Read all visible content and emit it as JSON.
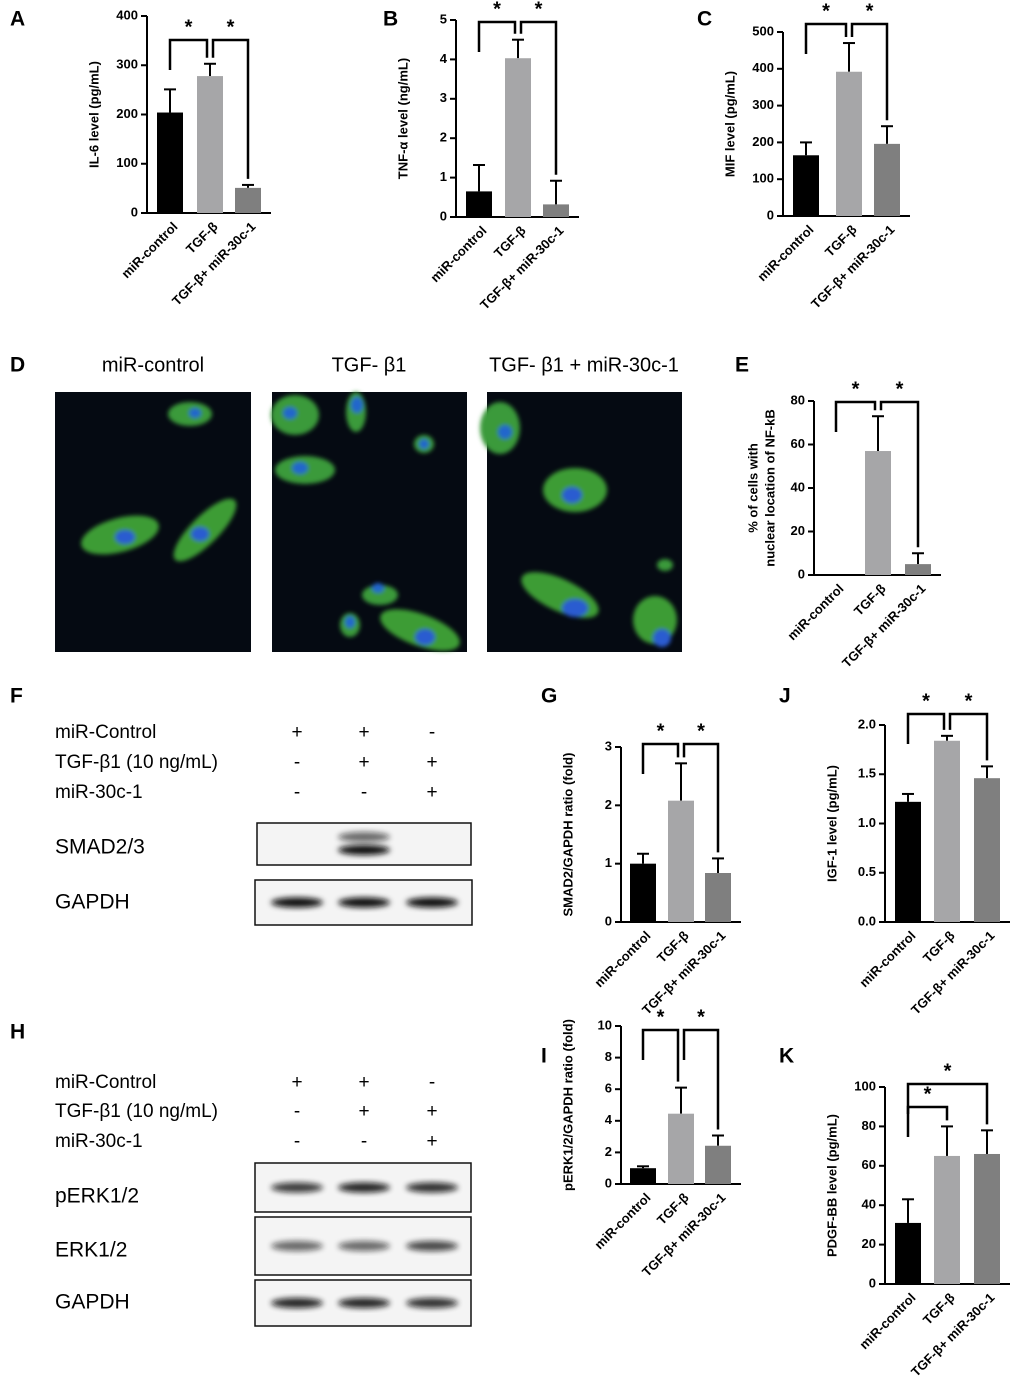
{
  "chart_data": [
    {
      "type": "bar",
      "panel": "A",
      "ylabel": "IL-6 level (pg/mL)",
      "categories": [
        "miR-control",
        "TGF-β",
        "TGF-β+ miR-30c-1"
      ],
      "values": [
        204,
        278,
        51
      ],
      "errors": [
        47,
        25,
        6
      ],
      "colors": [
        "#000000",
        "#a6a6a8",
        "#7f7f7f"
      ],
      "ylim": [
        0,
        400
      ],
      "yticks": [
        0,
        100,
        200,
        300,
        400
      ],
      "brackets": [
        {
          "between": [
            0,
            1
          ],
          "label": "*"
        },
        {
          "between": [
            1,
            2
          ],
          "label": "*"
        }
      ]
    },
    {
      "type": "bar",
      "panel": "B",
      "ylabel": "TNF-α level (ng/mL)",
      "categories": [
        "miR-control",
        "TGF-β",
        "TGF-β+ miR-30c-1"
      ],
      "values": [
        0.65,
        4.03,
        0.32
      ],
      "errors": [
        0.67,
        0.47,
        0.6
      ],
      "colors": [
        "#000000",
        "#a6a6a8",
        "#7f7f7f"
      ],
      "ylim": [
        0,
        5
      ],
      "yticks": [
        0,
        1,
        2,
        3,
        4,
        5
      ],
      "brackets": [
        {
          "between": [
            0,
            1
          ],
          "label": "*"
        },
        {
          "between": [
            1,
            2
          ],
          "label": "*"
        }
      ]
    },
    {
      "type": "bar",
      "panel": "C",
      "ylabel": "MIF level (pg/mL)",
      "categories": [
        "miR-control",
        "TGF-β",
        "TGF-β+ miR-30c-1"
      ],
      "values": [
        165,
        392,
        196
      ],
      "errors": [
        35,
        78,
        48
      ],
      "colors": [
        "#000000",
        "#a6a6a8",
        "#7f7f7f"
      ],
      "ylim": [
        0,
        500
      ],
      "yticks": [
        0,
        100,
        200,
        300,
        400,
        500
      ],
      "brackets": [
        {
          "between": [
            0,
            1
          ],
          "label": "*"
        },
        {
          "between": [
            1,
            2
          ],
          "label": "*"
        }
      ]
    },
    {
      "type": "bar",
      "panel": "E",
      "ylabel": [
        "% of cells with",
        "nuclear location of NF-kB"
      ],
      "categories": [
        "miR-control",
        "TGF-β",
        "TGF-β+ miR-30c-1"
      ],
      "values": [
        0,
        57,
        5
      ],
      "errors": [
        0,
        16,
        5
      ],
      "colors": [
        "#000000",
        "#a6a6a8",
        "#7f7f7f"
      ],
      "ylim": [
        0,
        80
      ],
      "yticks": [
        0,
        20,
        40,
        60,
        80
      ],
      "brackets": [
        {
          "between": [
            0,
            1
          ],
          "label": "*"
        },
        {
          "between": [
            1,
            2
          ],
          "label": "*"
        }
      ]
    },
    {
      "type": "bar",
      "panel": "G",
      "ylabel": "SMAD2/GAPDH ratio (fold)",
      "categories": [
        "miR-control",
        "TGF-β",
        "TGF-β+ miR-30c-1"
      ],
      "values": [
        1.0,
        2.08,
        0.84
      ],
      "errors": [
        0.17,
        0.64,
        0.25
      ],
      "colors": [
        "#000000",
        "#a6a6a8",
        "#7f7f7f"
      ],
      "ylim": [
        0,
        3
      ],
      "yticks": [
        0,
        1,
        2,
        3
      ],
      "brackets": [
        {
          "between": [
            0,
            1
          ],
          "label": "*"
        },
        {
          "between": [
            1,
            2
          ],
          "label": "*"
        }
      ]
    },
    {
      "type": "bar",
      "panel": "J",
      "ylabel": "IGF-1 level (pg/mL)",
      "categories": [
        "miR-control",
        "TGF-β",
        "TGF-β+ miR-30c-1"
      ],
      "values": [
        1.22,
        1.84,
        1.46
      ],
      "errors": [
        0.08,
        0.05,
        0.12
      ],
      "colors": [
        "#000000",
        "#a6a6a8",
        "#7f7f7f"
      ],
      "ylim": [
        0,
        2.0
      ],
      "yticks": [
        {
          "value": 0,
          "label": "0.0"
        },
        0.5,
        {
          "value": 1,
          "label": "1.0"
        },
        1.5,
        {
          "value": 2,
          "label": "2.0"
        }
      ],
      "brackets": [
        {
          "between": [
            0,
            1
          ],
          "label": "*"
        },
        {
          "between": [
            1,
            2
          ],
          "label": "*"
        }
      ]
    },
    {
      "type": "bar",
      "panel": "I",
      "ylabel": "pERK1/2/GAPDH ratio (fold)",
      "categories": [
        "miR-control",
        "TGF-β",
        "TGF-β+ miR-30c-1"
      ],
      "values": [
        1.0,
        4.45,
        2.42
      ],
      "errors": [
        0.12,
        1.65,
        0.65
      ],
      "colors": [
        "#000000",
        "#a6a6a8",
        "#7f7f7f"
      ],
      "ylim": [
        0,
        10
      ],
      "yticks": [
        0,
        2,
        4,
        6,
        8,
        10
      ],
      "brackets": [
        {
          "between": [
            0,
            1
          ],
          "label": "*"
        },
        {
          "between": [
            1,
            2
          ],
          "label": "*"
        }
      ]
    },
    {
      "type": "bar",
      "panel": "K",
      "ylabel": "PDGF-BB level (pg/mL)",
      "categories": [
        "miR-control",
        "TGF-β",
        "TGF-β+ miR-30c-1"
      ],
      "values": [
        31,
        65,
        66
      ],
      "errors": [
        12,
        15,
        12
      ],
      "colors": [
        "#000000",
        "#a6a6a8",
        "#7f7f7f"
      ],
      "ylim": [
        0,
        100
      ],
      "yticks": [
        0,
        20,
        40,
        60,
        80,
        100
      ],
      "brackets": [
        {
          "between": [
            0,
            1
          ],
          "label": "*"
        },
        {
          "between": [
            0,
            2
          ],
          "label": "*"
        }
      ]
    }
  ],
  "microscopy": {
    "panel": "D",
    "titles": [
      "miR-control",
      "TGF- β1",
      "TGF- β1 + miR-30c-1"
    ]
  },
  "blots": [
    {
      "panel": "F",
      "rows": [
        {
          "label": "miR-Control",
          "signs": [
            "+",
            "+",
            "-"
          ]
        },
        {
          "label": "TGF-β1 (10 ng/mL)",
          "signs": [
            "-",
            "+",
            "+"
          ]
        },
        {
          "label": "miR-30c-1",
          "signs": [
            "-",
            "-",
            "+"
          ]
        }
      ],
      "bands": [
        "SMAD2/3",
        "GAPDH"
      ]
    },
    {
      "panel": "H",
      "rows": [
        {
          "label": "miR-Control",
          "signs": [
            "+",
            "+",
            "-"
          ]
        },
        {
          "label": "TGF-β1 (10 ng/mL)",
          "signs": [
            "-",
            "+",
            "+"
          ]
        },
        {
          "label": "miR-30c-1",
          "signs": [
            "-",
            "-",
            "+"
          ]
        }
      ],
      "bands": [
        "pERK1/2",
        "ERK1/2",
        "GAPDH"
      ]
    }
  ]
}
